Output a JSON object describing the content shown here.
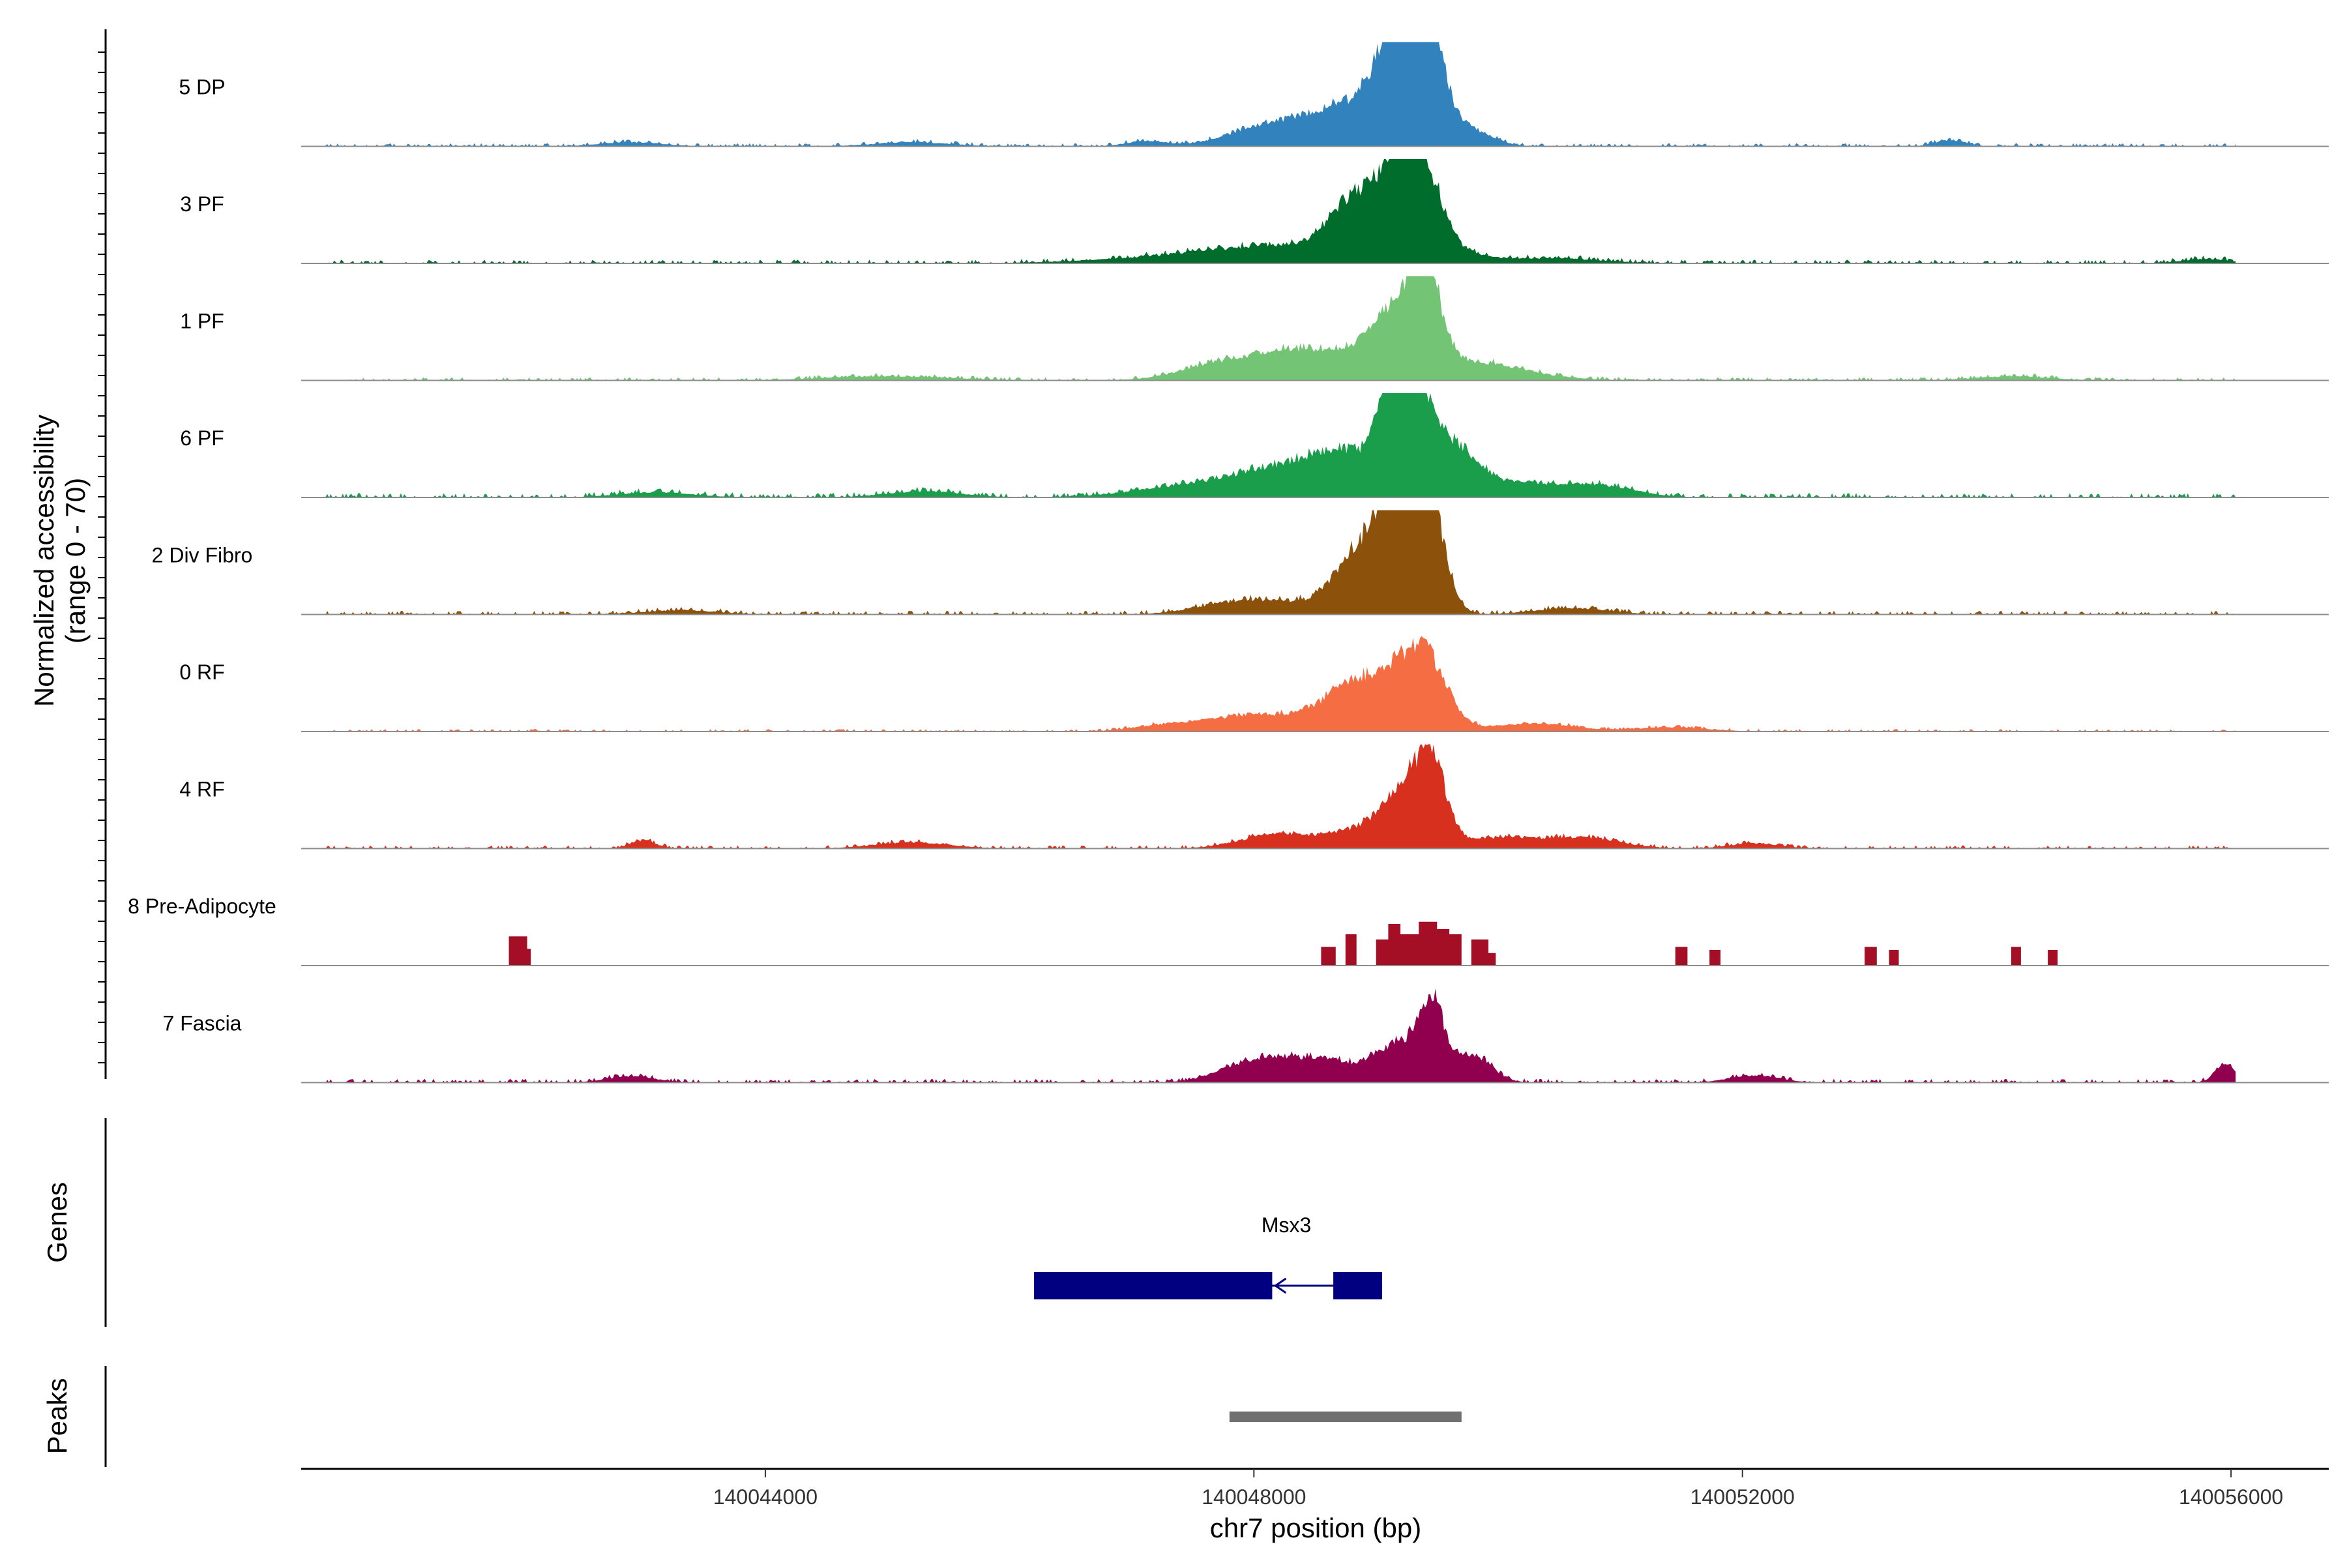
{
  "chart_data": {
    "type": "area",
    "title": "",
    "xlabel": "chr7 position (bp)",
    "ylabel": "Normalized accessibility",
    "ylabel_sub": "(range 0 - 70)",
    "xlim": [
      140040200,
      140056800
    ],
    "ylim": [
      0,
      70
    ],
    "x_ticks": [
      140044000,
      140048000,
      140052000,
      140056000
    ],
    "x_tick_labels": [
      "140044000",
      "140048000",
      "140052000",
      "140056000"
    ],
    "accessibility_tracks": [
      {
        "name": "5 DP",
        "color": "#3182BD",
        "peaks": [
          [
            140048300,
            0.26,
            400
          ],
          [
            140048700,
            0.13,
            200
          ],
          [
            140049050,
            0.35,
            220
          ],
          [
            140049200,
            0.88,
            110
          ],
          [
            140049420,
            0.88,
            110
          ],
          [
            140049310,
            0.55,
            250
          ],
          [
            140049800,
            0.1,
            180
          ],
          [
            140042900,
            0.04,
            250
          ],
          [
            140045200,
            0.04,
            300
          ],
          [
            140047100,
            0.05,
            150
          ],
          [
            140053700,
            0.06,
            120
          ]
        ],
        "noise": 0.025
      },
      {
        "name": "3 PF",
        "color": "#006D2C",
        "peaks": [
          [
            140047600,
            0.08,
            700
          ],
          [
            140048300,
            0.12,
            500
          ],
          [
            140048800,
            0.3,
            200
          ],
          [
            140049000,
            0.35,
            250
          ],
          [
            140049200,
            0.7,
            140
          ],
          [
            140049400,
            0.7,
            150
          ],
          [
            140049700,
            0.08,
            200
          ],
          [
            140050400,
            0.05,
            400
          ],
          [
            140055800,
            0.04,
            200
          ]
        ],
        "noise": 0.03
      },
      {
        "name": "1 PF",
        "color": "#74C476",
        "peaks": [
          [
            140047800,
            0.18,
            350
          ],
          [
            140048400,
            0.25,
            300
          ],
          [
            140048900,
            0.18,
            250
          ],
          [
            140049150,
            0.5,
            180
          ],
          [
            140049400,
            0.95,
            130
          ],
          [
            140049800,
            0.1,
            300
          ],
          [
            140050000,
            0.08,
            400
          ],
          [
            140045000,
            0.04,
            500
          ],
          [
            140054200,
            0.04,
            300
          ]
        ],
        "noise": 0.025
      },
      {
        "name": "6 PF",
        "color": "#1B9E4C",
        "peaks": [
          [
            140047600,
            0.12,
            500
          ],
          [
            140048300,
            0.22,
            400
          ],
          [
            140048800,
            0.35,
            300
          ],
          [
            140049150,
            0.9,
            120
          ],
          [
            140049350,
            0.8,
            140
          ],
          [
            140049650,
            0.4,
            180
          ],
          [
            140050100,
            0.14,
            300
          ],
          [
            140050800,
            0.12,
            300
          ],
          [
            140045300,
            0.06,
            300
          ],
          [
            140043100,
            0.05,
            300
          ]
        ],
        "noise": 0.035
      },
      {
        "name": "2 Div Fibro",
        "color": "#8C510A",
        "peaks": [
          [
            140047800,
            0.1,
            300
          ],
          [
            140048300,
            0.1,
            300
          ],
          [
            140048800,
            0.3,
            180
          ],
          [
            140049200,
            0.9,
            170
          ],
          [
            140049450,
            0.8,
            120
          ],
          [
            140049050,
            0.4,
            250
          ],
          [
            140050600,
            0.06,
            300
          ],
          [
            140043300,
            0.04,
            300
          ]
        ],
        "noise": 0.03
      },
      {
        "name": "0 RF",
        "color": "#F46D43",
        "peaks": [
          [
            140047400,
            0.08,
            300
          ],
          [
            140047950,
            0.12,
            250
          ],
          [
            140048500,
            0.15,
            300
          ],
          [
            140048800,
            0.3,
            200
          ],
          [
            140049100,
            0.35,
            200
          ],
          [
            140049400,
            0.7,
            180
          ],
          [
            140050300,
            0.08,
            300
          ],
          [
            140051400,
            0.04,
            300
          ]
        ],
        "noise": 0.02
      },
      {
        "name": "4 RF",
        "color": "#D7301F",
        "peaks": [
          [
            140048200,
            0.14,
            300
          ],
          [
            140048800,
            0.14,
            200
          ],
          [
            140049200,
            0.5,
            180
          ],
          [
            140049450,
            0.78,
            120
          ],
          [
            140050000,
            0.1,
            300
          ],
          [
            140050700,
            0.1,
            300
          ],
          [
            140043000,
            0.08,
            100
          ],
          [
            140045200,
            0.06,
            300
          ],
          [
            140052100,
            0.05,
            200
          ]
        ],
        "noise": 0.025
      },
      {
        "name": "8 Pre-Adipocyte",
        "color": "#A50F26",
        "blocks": [
          [
            140041900,
            140042050,
            0.28
          ],
          [
            140042050,
            140042080,
            0.16
          ],
          [
            140048550,
            140048670,
            0.18
          ],
          [
            140048750,
            140048840,
            0.3
          ],
          [
            140049000,
            140049100,
            0.25
          ],
          [
            140049100,
            140049200,
            0.4
          ],
          [
            140049200,
            140049350,
            0.3
          ],
          [
            140049350,
            140049500,
            0.42
          ],
          [
            140049500,
            140049600,
            0.35
          ],
          [
            140049600,
            140049700,
            0.3
          ],
          [
            140049780,
            140049920,
            0.25
          ],
          [
            140049920,
            140049980,
            0.12
          ],
          [
            140051450,
            140051550,
            0.18
          ],
          [
            140051730,
            140051820,
            0.15
          ],
          [
            140053000,
            140053100,
            0.18
          ],
          [
            140053200,
            140053280,
            0.15
          ],
          [
            140054200,
            140054280,
            0.18
          ],
          [
            140054500,
            140054580,
            0.15
          ]
        ]
      },
      {
        "name": "7 Fascia",
        "color": "#91004F",
        "peaks": [
          [
            140047950,
            0.18,
            250
          ],
          [
            140048300,
            0.15,
            200
          ],
          [
            140048650,
            0.18,
            200
          ],
          [
            140049150,
            0.35,
            180
          ],
          [
            140049450,
            0.75,
            110
          ],
          [
            140049800,
            0.25,
            150
          ],
          [
            140055950,
            0.18,
            80
          ],
          [
            140042900,
            0.06,
            200
          ],
          [
            140052100,
            0.07,
            200
          ]
        ],
        "noise": 0.03
      }
    ],
    "genes": [
      {
        "name": "Msx3",
        "strand": "-",
        "start": 140046200,
        "end": 140049050,
        "exons": [
          [
            140046200,
            140048150
          ],
          [
            140048650,
            140049050
          ]
        ],
        "color": "#000080"
      }
    ],
    "peaks_track": [
      {
        "start": 140047800,
        "end": 140049700,
        "color": "#707070"
      }
    ],
    "panel_labels": {
      "genes": "Genes",
      "peaks": "Peaks"
    }
  }
}
